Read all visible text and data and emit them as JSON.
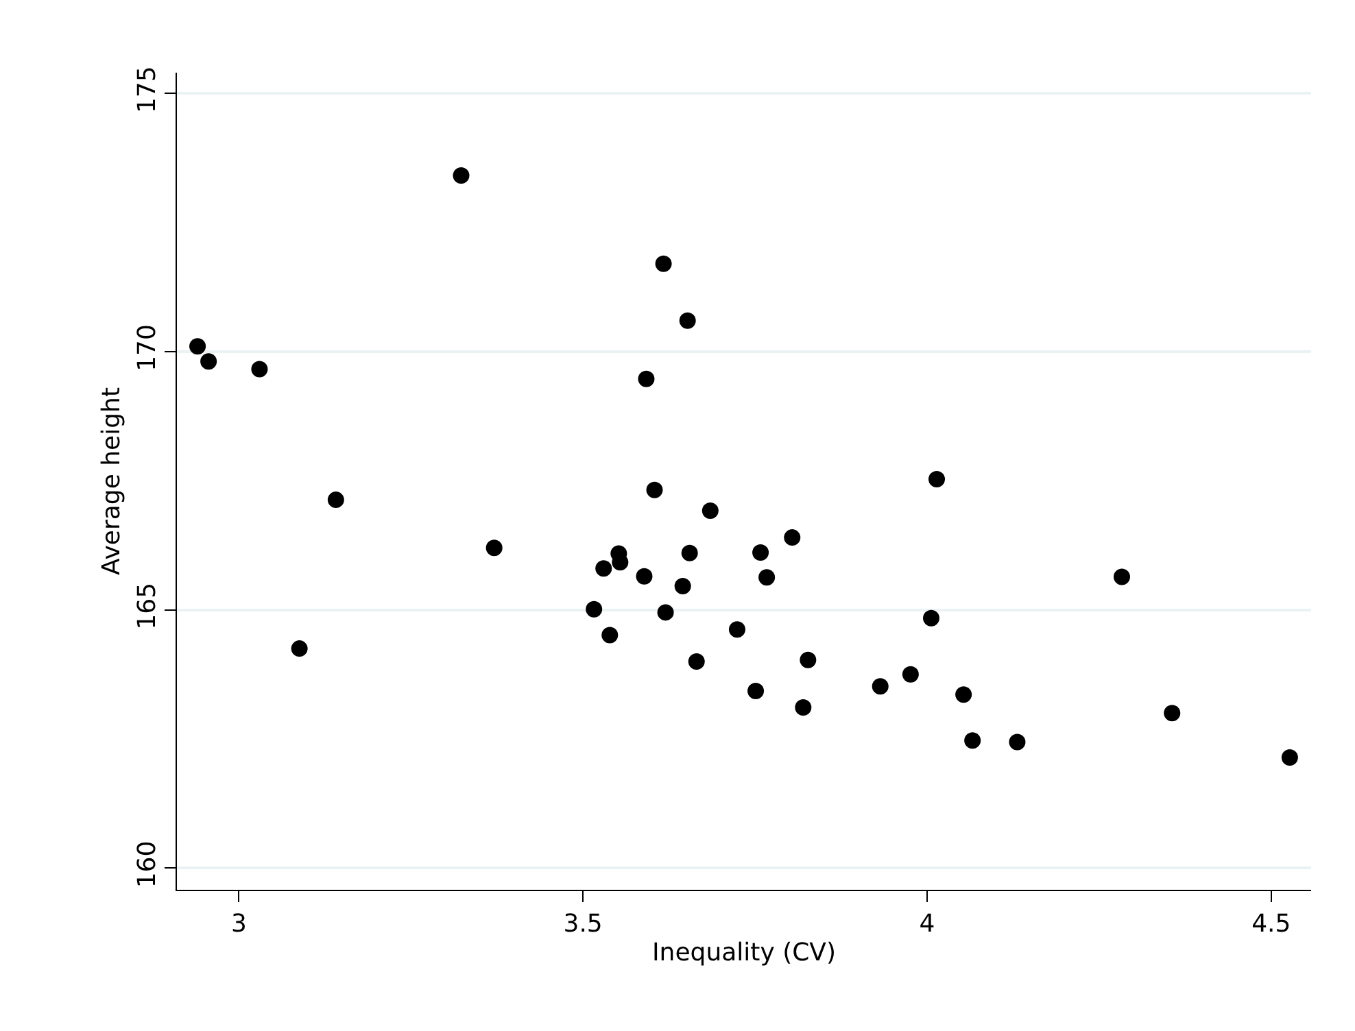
{
  "chart_data": {
    "type": "scatter",
    "xlabel": "Inequality (CV)",
    "ylabel": "Average height",
    "x": [
      2.94,
      2.956,
      3.03,
      3.141,
      3.088,
      3.323,
      3.371,
      3.516,
      3.53,
      3.539,
      3.617,
      3.652,
      3.592,
      3.604,
      3.685,
      3.552,
      3.554,
      3.655,
      3.758,
      3.589,
      3.645,
      3.767,
      3.804,
      3.62,
      3.724,
      3.665,
      3.751,
      3.827,
      3.82,
      3.932,
      3.976,
      4.014,
      4.006,
      4.053,
      4.066,
      4.131,
      4.283,
      4.356,
      4.527
    ],
    "series": [
      {
        "color": "#000000",
        "values": [
          170.1,
          169.81,
          169.66,
          167.13,
          164.25,
          173.41,
          166.2,
          165.01,
          165.8,
          164.51,
          171.7,
          170.6,
          169.47,
          167.32,
          166.92,
          166.09,
          165.92,
          166.1,
          166.11,
          165.65,
          165.46,
          165.63,
          166.4,
          164.95,
          164.62,
          164.0,
          163.43,
          164.03,
          163.11,
          163.52,
          163.75,
          167.53,
          164.84,
          163.36,
          162.47,
          162.44,
          165.64,
          163.0,
          162.14
        ]
      }
    ],
    "xlim": [
      2.91,
      4.558
    ],
    "ylim": [
      159.58,
      175.4
    ],
    "xticks": [
      3,
      3.5,
      4,
      4.5
    ],
    "yticks": [
      160,
      165,
      170,
      175
    ],
    "grid": "y",
    "marker": "circle"
  }
}
